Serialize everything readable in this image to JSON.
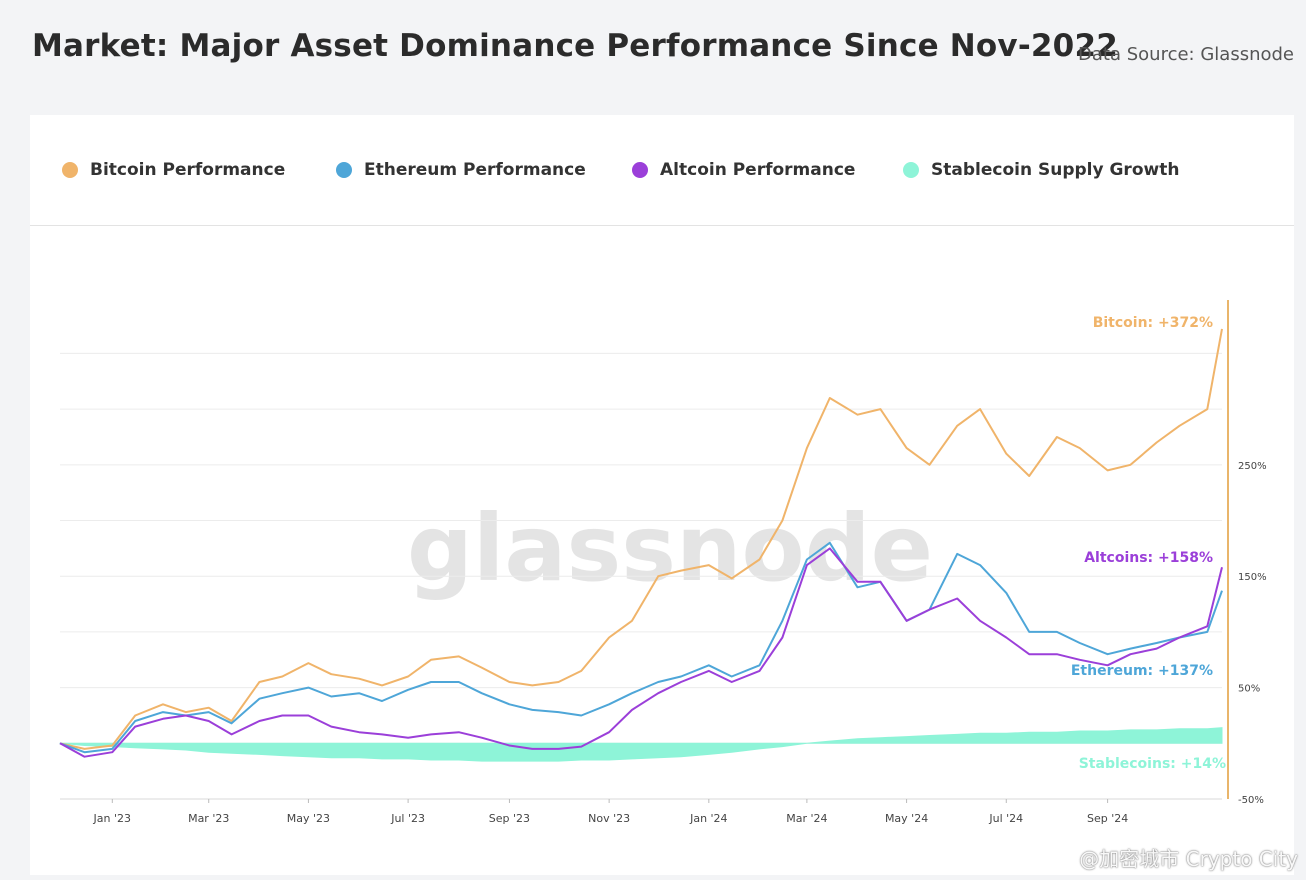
{
  "header": {
    "title": "Market: Major Asset Dominance Performance Since Nov-2022",
    "source": "Data Source: Glassnode"
  },
  "legend": [
    {
      "label": "Bitcoin Performance",
      "color": "#f0b46a"
    },
    {
      "label": "Ethereum Performance",
      "color": "#4ea6d8"
    },
    {
      "label": "Altcoin Performance",
      "color": "#9b3fd9"
    },
    {
      "label": "Stablecoin Supply Growth",
      "color": "#8ef4d8"
    }
  ],
  "watermark": "glassnode",
  "credit": "@加密城市 Crypto City",
  "chart_data": {
    "type": "line",
    "ylim": [
      -50,
      380
    ],
    "y_ticks": [
      {
        "value": 250,
        "label": "250%"
      },
      {
        "value": 150,
        "label": "150%"
      },
      {
        "value": 50,
        "label": "50%"
      },
      {
        "value": -50,
        "label": "-50%"
      }
    ],
    "x_ticks": [
      "Jan '23",
      "Mar '23",
      "May '23",
      "Jul '23",
      "Sep '23",
      "Nov '23",
      "Jan '24",
      "Mar '24",
      "May '24",
      "Jul '24",
      "Sep '24"
    ],
    "x": [
      "2022-11-30",
      "2022-12-15",
      "2023-01-01",
      "2023-01-15",
      "2023-02-01",
      "2023-02-15",
      "2023-03-01",
      "2023-03-15",
      "2023-04-01",
      "2023-04-15",
      "2023-05-01",
      "2023-05-15",
      "2023-06-01",
      "2023-06-15",
      "2023-07-01",
      "2023-07-15",
      "2023-08-01",
      "2023-08-15",
      "2023-09-01",
      "2023-09-15",
      "2023-10-01",
      "2023-10-15",
      "2023-11-01",
      "2023-11-15",
      "2023-12-01",
      "2023-12-15",
      "2024-01-01",
      "2024-01-15",
      "2024-02-01",
      "2024-02-15",
      "2024-03-01",
      "2024-03-15",
      "2024-04-01",
      "2024-04-15",
      "2024-05-01",
      "2024-05-15",
      "2024-06-01",
      "2024-06-15",
      "2024-07-01",
      "2024-07-15",
      "2024-08-01",
      "2024-08-15",
      "2024-09-01",
      "2024-09-15",
      "2024-10-01",
      "2024-10-15",
      "2024-11-01",
      "2024-11-10"
    ],
    "series": [
      {
        "name": "Bitcoin: +372%",
        "color": "#f0b46a",
        "values": [
          0,
          -5,
          -2,
          25,
          35,
          28,
          32,
          20,
          55,
          60,
          72,
          62,
          58,
          52,
          60,
          75,
          78,
          68,
          55,
          52,
          55,
          65,
          95,
          110,
          150,
          155,
          160,
          148,
          165,
          200,
          265,
          310,
          295,
          300,
          265,
          250,
          285,
          300,
          260,
          240,
          275,
          265,
          245,
          250,
          270,
          285,
          300,
          372
        ]
      },
      {
        "name": "Ethereum: +137%",
        "color": "#4ea6d8",
        "values": [
          0,
          -8,
          -5,
          20,
          28,
          25,
          28,
          18,
          40,
          45,
          50,
          42,
          45,
          38,
          48,
          55,
          55,
          45,
          35,
          30,
          28,
          25,
          35,
          45,
          55,
          60,
          70,
          60,
          70,
          110,
          165,
          180,
          140,
          145,
          110,
          120,
          170,
          160,
          135,
          100,
          100,
          90,
          80,
          85,
          90,
          95,
          100,
          137
        ]
      },
      {
        "name": "Altcoins: +158%",
        "color": "#9b3fd9",
        "values": [
          0,
          -12,
          -8,
          15,
          22,
          25,
          20,
          8,
          20,
          25,
          25,
          15,
          10,
          8,
          5,
          8,
          10,
          5,
          -2,
          -5,
          -5,
          -3,
          10,
          30,
          45,
          55,
          65,
          55,
          65,
          95,
          160,
          175,
          145,
          145,
          110,
          120,
          130,
          110,
          95,
          80,
          80,
          75,
          70,
          80,
          85,
          95,
          105,
          158
        ]
      },
      {
        "name": "Stablecoins: +14%",
        "color": "#8ef4d8",
        "values": [
          0,
          -2,
          -3,
          -4,
          -5,
          -6,
          -8,
          -9,
          -10,
          -11,
          -12,
          -13,
          -13,
          -14,
          -14,
          -15,
          -15,
          -16,
          -16,
          -16,
          -16,
          -15,
          -15,
          -14,
          -13,
          -12,
          -10,
          -8,
          -5,
          -3,
          0,
          2,
          4,
          5,
          6,
          7,
          8,
          9,
          9,
          10,
          10,
          11,
          11,
          12,
          12,
          13,
          13,
          14
        ]
      }
    ]
  }
}
